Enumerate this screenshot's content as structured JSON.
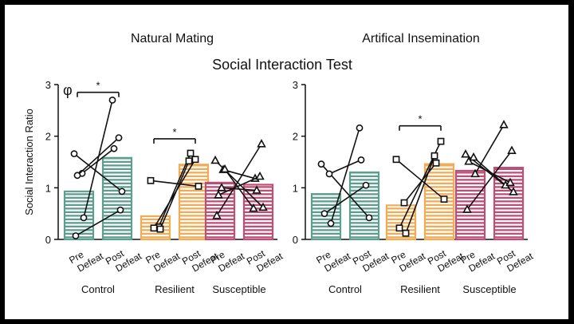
{
  "figure_title": "Social Interaction Test",
  "panel_label": "φ",
  "significance_marker": "*",
  "colors": {
    "control": "#5e9e8f",
    "resilient": "#f0ad57",
    "susceptible": "#bd4f76",
    "line": "#111111"
  },
  "chart_data": [
    {
      "type": "bar",
      "title": "Natural Mating",
      "ylabel": "Social Interaction Ratio",
      "ylim": [
        0,
        3
      ],
      "yticks": [
        0,
        1,
        2,
        3
      ],
      "conditions": [
        "Pre\nDefeat",
        "Post\nDefeat"
      ],
      "categories": [
        "Control",
        "Resilient",
        "Susceptible"
      ],
      "groups": [
        {
          "name": "Control",
          "color_key": "control",
          "marker": "circle",
          "pre_mean": 0.93,
          "post_mean": 1.58,
          "pairs": [
            [
              1.66,
              0.93
            ],
            [
              1.28,
              1.76
            ],
            [
              1.24,
              1.97
            ],
            [
              0.42,
              2.7
            ],
            [
              0.07,
              0.57
            ]
          ]
        },
        {
          "name": "Resilient",
          "color_key": "resilient",
          "marker": "square",
          "pre_mean": 0.45,
          "post_mean": 1.45,
          "pairs": [
            [
              1.14,
              1.03
            ],
            [
              0.24,
              1.67
            ],
            [
              0.22,
              1.55
            ],
            [
              0.2,
              1.52
            ]
          ]
        },
        {
          "name": "Susceptible",
          "color_key": "susceptible",
          "marker": "triangle",
          "pre_mean": 1.1,
          "post_mean": 1.06,
          "pairs": [
            [
              1.53,
              0.62
            ],
            [
              1.35,
              1.18
            ],
            [
              0.86,
              1.22
            ],
            [
              1.36,
              0.6
            ],
            [
              0.46,
              1.85
            ],
            [
              1.0,
              0.95
            ]
          ]
        }
      ],
      "significance": [
        {
          "from": "Control pre",
          "to": "Control post",
          "y": 2.85
        },
        {
          "from": "Resilient pre",
          "to": "Resilient post",
          "y": 1.95
        }
      ]
    },
    {
      "type": "bar",
      "title": "Artifical Insemination",
      "ylim": [
        0,
        3
      ],
      "yticks": [
        0,
        1,
        2,
        3
      ],
      "conditions": [
        "Pre\nDefeat",
        "Post\nDefeat"
      ],
      "categories": [
        "Control",
        "Resilient",
        "Susceptible"
      ],
      "groups": [
        {
          "name": "Control",
          "color_key": "control",
          "marker": "circle",
          "pre_mean": 0.88,
          "post_mean": 1.3,
          "pairs": [
            [
              1.46,
              0.42
            ],
            [
              1.27,
              1.54
            ],
            [
              0.5,
              1.05
            ],
            [
              0.31,
              2.16
            ]
          ]
        },
        {
          "name": "Resilient",
          "color_key": "resilient",
          "marker": "square",
          "pre_mean": 0.66,
          "post_mean": 1.46,
          "pairs": [
            [
              1.55,
              0.78
            ],
            [
              0.71,
              1.48
            ],
            [
              0.22,
              1.9
            ],
            [
              0.12,
              1.62
            ]
          ]
        },
        {
          "name": "Susceptible",
          "color_key": "susceptible",
          "marker": "triangle",
          "pre_mean": 1.33,
          "post_mean": 1.39,
          "pairs": [
            [
              1.65,
              0.92
            ],
            [
              1.59,
              1.05
            ],
            [
              1.51,
              1.1
            ],
            [
              1.27,
              2.22
            ],
            [
              0.58,
              1.72
            ]
          ]
        }
      ],
      "significance": [
        {
          "from": "Resilient pre",
          "to": "Resilient post",
          "y": 2.2
        }
      ]
    }
  ]
}
